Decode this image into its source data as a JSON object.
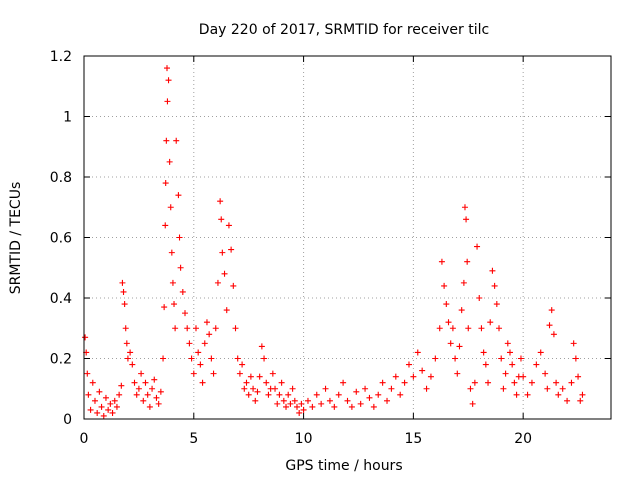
{
  "chart_data": {
    "type": "scatter",
    "title": "Day 220 of 2017, SRMTID for receiver tilc",
    "xlabel": "GPS time / hours",
    "ylabel": "SRMTID / TECUs",
    "xlim": [
      0,
      24
    ],
    "ylim": [
      0,
      1.2
    ],
    "xticks": [
      0,
      5,
      10,
      15,
      20
    ],
    "xtick_labels": [
      "0",
      "5",
      "10",
      "15",
      "20"
    ],
    "yticks": [
      0,
      0.2,
      0.4,
      0.6,
      0.8,
      1.0,
      1.2
    ],
    "ytick_labels": [
      "0",
      "0.2",
      "0.4",
      "0.6",
      "0.8",
      "1",
      "1.2"
    ],
    "grid": true,
    "marker": "+",
    "series_color": "#ff0000",
    "series": [
      {
        "name": "SRMTID",
        "points": [
          [
            0.05,
            0.27
          ],
          [
            0.1,
            0.22
          ],
          [
            0.15,
            0.15
          ],
          [
            0.2,
            0.08
          ],
          [
            0.3,
            0.03
          ],
          [
            0.4,
            0.12
          ],
          [
            0.5,
            0.06
          ],
          [
            0.6,
            0.02
          ],
          [
            0.7,
            0.09
          ],
          [
            0.8,
            0.04
          ],
          [
            0.9,
            0.01
          ],
          [
            1.0,
            0.07
          ],
          [
            1.1,
            0.03
          ],
          [
            1.2,
            0.05
          ],
          [
            1.3,
            0.02
          ],
          [
            1.4,
            0.06
          ],
          [
            1.5,
            0.04
          ],
          [
            1.6,
            0.08
          ],
          [
            1.7,
            0.11
          ],
          [
            1.75,
            0.45
          ],
          [
            1.8,
            0.42
          ],
          [
            1.85,
            0.38
          ],
          [
            1.9,
            0.3
          ],
          [
            1.95,
            0.25
          ],
          [
            2.0,
            0.2
          ],
          [
            2.1,
            0.22
          ],
          [
            2.2,
            0.18
          ],
          [
            2.3,
            0.12
          ],
          [
            2.4,
            0.08
          ],
          [
            2.5,
            0.1
          ],
          [
            2.6,
            0.15
          ],
          [
            2.7,
            0.06
          ],
          [
            2.8,
            0.12
          ],
          [
            2.9,
            0.08
          ],
          [
            3.0,
            0.04
          ],
          [
            3.1,
            0.1
          ],
          [
            3.2,
            0.13
          ],
          [
            3.3,
            0.07
          ],
          [
            3.4,
            0.05
          ],
          [
            3.5,
            0.09
          ],
          [
            3.6,
            0.2
          ],
          [
            3.65,
            0.37
          ],
          [
            3.7,
            0.64
          ],
          [
            3.72,
            0.78
          ],
          [
            3.75,
            0.92
          ],
          [
            3.78,
            1.16
          ],
          [
            3.8,
            1.05
          ],
          [
            3.85,
            1.12
          ],
          [
            3.9,
            0.85
          ],
          [
            3.95,
            0.7
          ],
          [
            4.0,
            0.55
          ],
          [
            4.05,
            0.45
          ],
          [
            4.1,
            0.38
          ],
          [
            4.15,
            0.3
          ],
          [
            4.2,
            0.92
          ],
          [
            4.3,
            0.74
          ],
          [
            4.35,
            0.6
          ],
          [
            4.4,
            0.5
          ],
          [
            4.5,
            0.42
          ],
          [
            4.6,
            0.35
          ],
          [
            4.7,
            0.3
          ],
          [
            4.8,
            0.25
          ],
          [
            4.9,
            0.2
          ],
          [
            5.0,
            0.15
          ],
          [
            5.1,
            0.3
          ],
          [
            5.2,
            0.22
          ],
          [
            5.3,
            0.18
          ],
          [
            5.4,
            0.12
          ],
          [
            5.5,
            0.25
          ],
          [
            5.6,
            0.32
          ],
          [
            5.7,
            0.28
          ],
          [
            5.8,
            0.2
          ],
          [
            5.9,
            0.15
          ],
          [
            6.0,
            0.3
          ],
          [
            6.1,
            0.45
          ],
          [
            6.2,
            0.72
          ],
          [
            6.25,
            0.66
          ],
          [
            6.3,
            0.55
          ],
          [
            6.4,
            0.48
          ],
          [
            6.5,
            0.36
          ],
          [
            6.6,
            0.64
          ],
          [
            6.7,
            0.56
          ],
          [
            6.8,
            0.44
          ],
          [
            6.9,
            0.3
          ],
          [
            7.0,
            0.2
          ],
          [
            7.1,
            0.15
          ],
          [
            7.2,
            0.18
          ],
          [
            7.3,
            0.1
          ],
          [
            7.4,
            0.12
          ],
          [
            7.5,
            0.08
          ],
          [
            7.6,
            0.14
          ],
          [
            7.7,
            0.1
          ],
          [
            7.8,
            0.06
          ],
          [
            7.9,
            0.09
          ],
          [
            8.0,
            0.14
          ],
          [
            8.1,
            0.24
          ],
          [
            8.2,
            0.2
          ],
          [
            8.3,
            0.12
          ],
          [
            8.4,
            0.08
          ],
          [
            8.5,
            0.1
          ],
          [
            8.6,
            0.15
          ],
          [
            8.7,
            0.1
          ],
          [
            8.8,
            0.05
          ],
          [
            8.9,
            0.08
          ],
          [
            9.0,
            0.12
          ],
          [
            9.1,
            0.06
          ],
          [
            9.2,
            0.04
          ],
          [
            9.3,
            0.08
          ],
          [
            9.4,
            0.05
          ],
          [
            9.5,
            0.1
          ],
          [
            9.6,
            0.06
          ],
          [
            9.7,
            0.04
          ],
          [
            9.8,
            0.02
          ],
          [
            9.9,
            0.05
          ],
          [
            10.0,
            0.03
          ],
          [
            10.2,
            0.06
          ],
          [
            10.4,
            0.04
          ],
          [
            10.6,
            0.08
          ],
          [
            10.8,
            0.05
          ],
          [
            11.0,
            0.1
          ],
          [
            11.2,
            0.06
          ],
          [
            11.4,
            0.04
          ],
          [
            11.6,
            0.08
          ],
          [
            11.8,
            0.12
          ],
          [
            12.0,
            0.06
          ],
          [
            12.2,
            0.04
          ],
          [
            12.4,
            0.09
          ],
          [
            12.6,
            0.05
          ],
          [
            12.8,
            0.1
          ],
          [
            13.0,
            0.07
          ],
          [
            13.2,
            0.04
          ],
          [
            13.4,
            0.08
          ],
          [
            13.6,
            0.12
          ],
          [
            13.8,
            0.06
          ],
          [
            14.0,
            0.1
          ],
          [
            14.2,
            0.14
          ],
          [
            14.4,
            0.08
          ],
          [
            14.6,
            0.12
          ],
          [
            14.8,
            0.18
          ],
          [
            15.0,
            0.14
          ],
          [
            15.2,
            0.22
          ],
          [
            15.4,
            0.16
          ],
          [
            15.6,
            0.1
          ],
          [
            15.8,
            0.14
          ],
          [
            16.0,
            0.2
          ],
          [
            16.2,
            0.3
          ],
          [
            16.3,
            0.52
          ],
          [
            16.4,
            0.44
          ],
          [
            16.5,
            0.38
          ],
          [
            16.6,
            0.32
          ],
          [
            16.7,
            0.25
          ],
          [
            16.8,
            0.3
          ],
          [
            16.9,
            0.2
          ],
          [
            17.0,
            0.15
          ],
          [
            17.1,
            0.24
          ],
          [
            17.2,
            0.36
          ],
          [
            17.3,
            0.45
          ],
          [
            17.35,
            0.7
          ],
          [
            17.4,
            0.66
          ],
          [
            17.45,
            0.52
          ],
          [
            17.5,
            0.3
          ],
          [
            17.6,
            0.1
          ],
          [
            17.7,
            0.05
          ],
          [
            17.8,
            0.12
          ],
          [
            17.9,
            0.57
          ],
          [
            18.0,
            0.4
          ],
          [
            18.1,
            0.3
          ],
          [
            18.2,
            0.22
          ],
          [
            18.3,
            0.18
          ],
          [
            18.4,
            0.12
          ],
          [
            18.5,
            0.32
          ],
          [
            18.6,
            0.49
          ],
          [
            18.7,
            0.44
          ],
          [
            18.8,
            0.38
          ],
          [
            18.9,
            0.3
          ],
          [
            19.0,
            0.2
          ],
          [
            19.1,
            0.1
          ],
          [
            19.2,
            0.15
          ],
          [
            19.3,
            0.25
          ],
          [
            19.4,
            0.22
          ],
          [
            19.5,
            0.18
          ],
          [
            19.6,
            0.12
          ],
          [
            19.7,
            0.08
          ],
          [
            19.8,
            0.14
          ],
          [
            19.9,
            0.2
          ],
          [
            20.0,
            0.14
          ],
          [
            20.2,
            0.08
          ],
          [
            20.4,
            0.12
          ],
          [
            20.6,
            0.18
          ],
          [
            20.8,
            0.22
          ],
          [
            21.0,
            0.15
          ],
          [
            21.1,
            0.1
          ],
          [
            21.2,
            0.31
          ],
          [
            21.3,
            0.36
          ],
          [
            21.4,
            0.28
          ],
          [
            21.5,
            0.12
          ],
          [
            21.6,
            0.08
          ],
          [
            21.8,
            0.1
          ],
          [
            22.0,
            0.06
          ],
          [
            22.2,
            0.12
          ],
          [
            22.3,
            0.25
          ],
          [
            22.4,
            0.2
          ],
          [
            22.5,
            0.14
          ],
          [
            22.6,
            0.06
          ],
          [
            22.7,
            0.08
          ]
        ]
      }
    ]
  }
}
